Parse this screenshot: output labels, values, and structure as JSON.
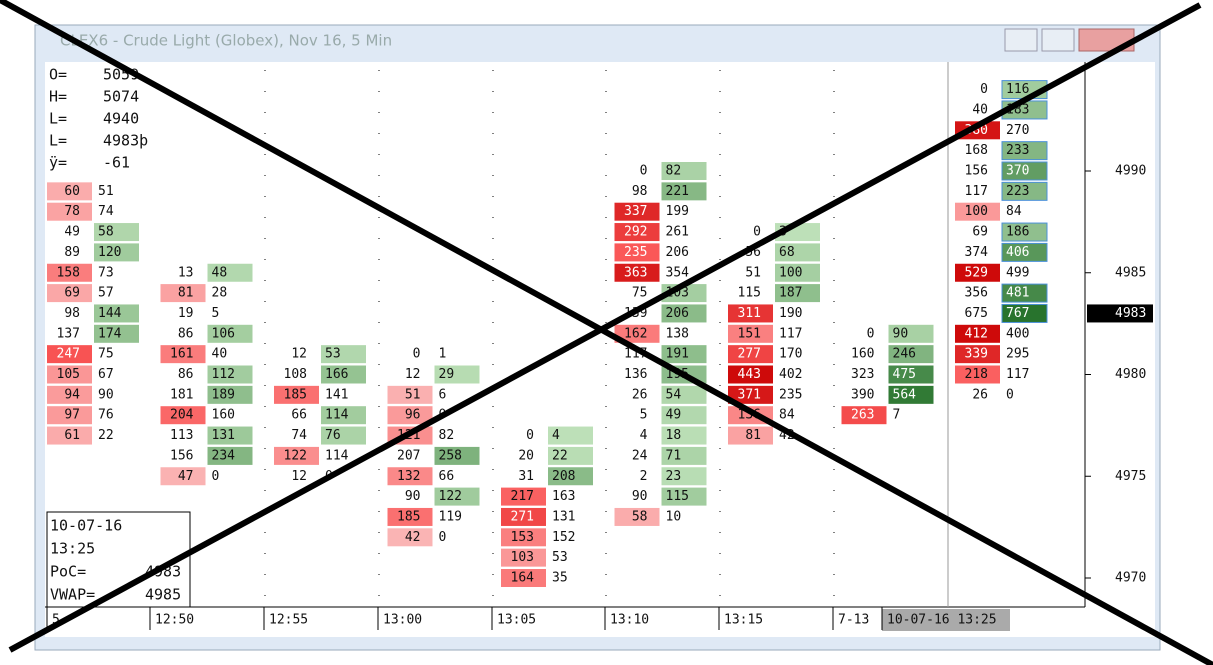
{
  "window": {
    "title": "CLEX6 - Crude Light (Globex), Nov 16, 5 Min"
  },
  "info_top": [
    "O=",
    "5059",
    "H=",
    "5074",
    "L=",
    "4940",
    "L=",
    "4983þ",
    "ÿ=",
    "-61"
  ],
  "info_bottom": [
    "10-07-16",
    "13:25",
    "PoC=",
    "4983",
    "VWAP=",
    "4985"
  ],
  "price_axis": {
    "lim": [
      4970,
      4990
    ],
    "ticks": [
      4990,
      4985,
      4980,
      4975,
      4970
    ],
    "current": 4983
  },
  "time_labels": [
    "5",
    "12:50",
    "12:55",
    "13:00",
    "13:05",
    "13:10",
    "13:15",
    "7-13",
    "10-07-16 13:25"
  ],
  "columns": [
    {
      "high": 4989,
      "rows": [
        [
          60,
          51
        ],
        [
          78,
          74
        ],
        [
          49,
          58
        ],
        [
          89,
          120
        ],
        [
          158,
          73
        ],
        [
          69,
          57
        ],
        [
          98,
          144
        ],
        [
          137,
          174
        ],
        [
          247,
          75
        ],
        [
          105,
          67
        ],
        [
          94,
          90
        ],
        [
          97,
          76
        ],
        [
          61,
          22
        ]
      ]
    },
    {
      "high": 4985,
      "rows": [
        [
          13,
          48
        ],
        [
          81,
          28
        ],
        [
          19,
          5
        ],
        [
          86,
          106
        ],
        [
          161,
          40
        ],
        [
          86,
          112
        ],
        [
          181,
          189
        ],
        [
          204,
          160
        ],
        [
          113,
          131
        ],
        [
          156,
          234
        ],
        [
          47,
          0
        ]
      ]
    },
    {
      "high": 4981,
      "rows": [
        [
          12,
          53
        ],
        [
          108,
          166
        ],
        [
          185,
          141
        ],
        [
          66,
          114
        ],
        [
          74,
          76
        ],
        [
          122,
          114
        ],
        [
          12,
          0
        ]
      ]
    },
    {
      "high": 4981,
      "rows": [
        [
          0,
          1
        ],
        [
          12,
          29
        ],
        [
          51,
          6
        ],
        [
          96,
          0
        ],
        [
          121,
          82
        ],
        [
          207,
          258
        ],
        [
          132,
          66
        ],
        [
          90,
          122
        ],
        [
          185,
          119
        ],
        [
          42,
          0
        ]
      ]
    },
    {
      "high": 4977,
      "rows": [
        [
          0,
          4
        ],
        [
          20,
          22
        ],
        [
          31,
          208
        ],
        [
          217,
          163
        ],
        [
          271,
          131
        ],
        [
          153,
          152
        ],
        [
          103,
          53
        ],
        [
          164,
          35
        ]
      ]
    },
    {
      "high": 4990,
      "rows": [
        [
          0,
          82
        ],
        [
          98,
          221
        ],
        [
          337,
          199
        ],
        [
          292,
          261
        ],
        [
          235,
          206
        ],
        [
          363,
          354
        ],
        [
          75,
          103
        ],
        [
          139,
          206
        ],
        [
          162,
          138
        ],
        [
          117,
          191
        ],
        [
          136,
          195
        ],
        [
          26,
          54
        ],
        [
          5,
          49
        ],
        [
          4,
          18
        ],
        [
          24,
          71
        ],
        [
          2,
          23
        ],
        [
          90,
          115
        ],
        [
          58,
          10
        ]
      ]
    },
    {
      "high": 4987,
      "rows": [
        [
          0,
          3
        ],
        [
          56,
          68
        ],
        [
          51,
          100
        ],
        [
          115,
          187
        ],
        [
          311,
          190
        ],
        [
          151,
          117
        ],
        [
          277,
          170
        ],
        [
          443,
          402
        ],
        [
          371,
          235
        ],
        [
          136,
          84
        ],
        [
          81,
          42
        ]
      ]
    },
    {
      "high": 4982,
      "rows": [
        [
          0,
          90
        ],
        [
          160,
          246
        ],
        [
          323,
          475
        ],
        [
          390,
          564
        ],
        [
          263,
          7
        ]
      ]
    },
    {
      "high": 4994,
      "rows": [
        [
          0,
          116
        ],
        [
          40,
          183
        ],
        [
          380,
          270
        ],
        [
          168,
          233
        ],
        [
          156,
          370
        ],
        [
          117,
          223
        ],
        [
          100,
          84
        ],
        [
          69,
          186
        ],
        [
          374,
          406
        ],
        [
          529,
          499
        ],
        [
          356,
          481
        ],
        [
          675,
          767
        ],
        [
          412,
          400
        ],
        [
          339,
          295
        ],
        [
          218,
          117
        ],
        [
          26,
          0
        ]
      ]
    }
  ]
}
